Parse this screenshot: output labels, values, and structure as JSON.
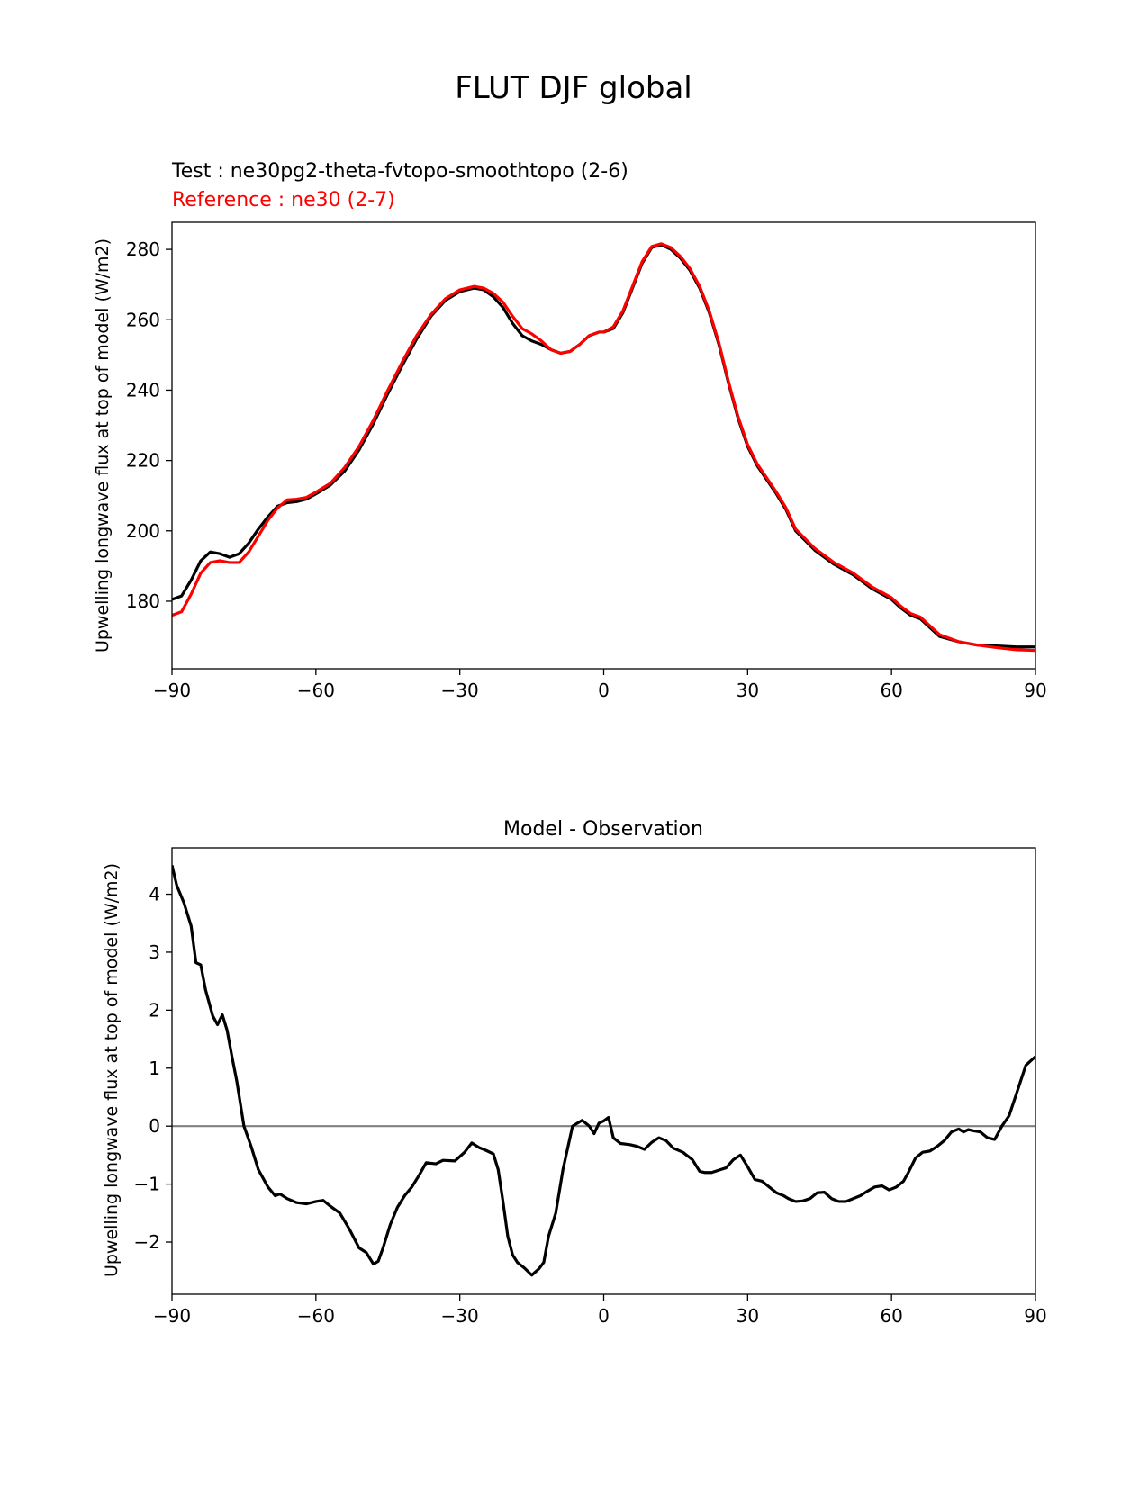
{
  "suptitle": "FLUT DJF global",
  "colors": {
    "test": "#000000",
    "reference": "#ff0000",
    "zero_line": "#808080"
  },
  "chart_data": [
    {
      "type": "line",
      "test_label": "Test : ne30pg2-theta-fvtopo-smoothtopo (2-6)",
      "reference_label": "Reference : ne30 (2-7)",
      "xlabel": "",
      "ylabel": "Upwelling longwave flux at top of model (W/m2)",
      "xlim": [
        -90,
        90
      ],
      "ylim": [
        160.8,
        287.7
      ],
      "xticks": [
        -90,
        -60,
        -30,
        0,
        30,
        60,
        90
      ],
      "xtick_labels": [
        "−90",
        "−60",
        "−30",
        "0",
        "30",
        "60",
        "90"
      ],
      "yticks": [
        180,
        200,
        220,
        240,
        260,
        280
      ],
      "ytick_labels": [
        "180",
        "200",
        "220",
        "240",
        "260",
        "280"
      ],
      "series": [
        {
          "name": "Test : ne30pg2-theta-fvtopo-smoothtopo (2-6)",
          "color": "#000000",
          "x": [
            -90,
            -88,
            -86,
            -84,
            -82,
            -80,
            -78,
            -76,
            -74,
            -72,
            -70,
            -68,
            -66,
            -64,
            -62,
            -60,
            -57,
            -54,
            -51,
            -48,
            -45,
            -42,
            -39,
            -36,
            -33,
            -30,
            -27,
            -25,
            -23,
            -21,
            -19,
            -17,
            -15,
            -13,
            -11,
            -9,
            -7,
            -5,
            -3,
            -1,
            0,
            2,
            4,
            6,
            8,
            10,
            12,
            14,
            16,
            18,
            20,
            22,
            24,
            26,
            28,
            30,
            32,
            34,
            36,
            38,
            40,
            44,
            48,
            52,
            56,
            60,
            62,
            64,
            66,
            68,
            70,
            74,
            78,
            82,
            86,
            90
          ],
          "values": [
            180.5,
            181.5,
            186.0,
            191.5,
            194.0,
            193.5,
            192.5,
            193.5,
            196.5,
            200.5,
            204.0,
            207.0,
            208.0,
            208.3,
            209.0,
            210.5,
            213.0,
            217.0,
            223.0,
            230.5,
            239.0,
            247.0,
            254.5,
            261.0,
            265.5,
            268.0,
            269.0,
            268.5,
            266.5,
            263.5,
            259.0,
            255.5,
            254.0,
            253.0,
            251.5,
            250.5,
            251.0,
            253.0,
            255.5,
            256.5,
            256.5,
            257.5,
            262.0,
            269.0,
            276.0,
            280.5,
            281.3,
            280.0,
            277.5,
            274.0,
            269.0,
            262.0,
            253.0,
            242.0,
            232.0,
            224.0,
            218.5,
            214.5,
            210.5,
            206.0,
            200.0,
            194.5,
            190.5,
            187.5,
            183.5,
            180.5,
            178.0,
            176.0,
            175.0,
            172.5,
            170.0,
            168.5,
            167.5,
            167.3,
            167.0,
            167.0
          ]
        },
        {
          "name": "Reference : ne30 (2-7)",
          "color": "#ff0000",
          "x": [
            -90,
            -88,
            -86,
            -84,
            -82,
            -80,
            -78,
            -76,
            -74,
            -72,
            -70,
            -68,
            -66,
            -64,
            -62,
            -60,
            -57,
            -54,
            -51,
            -48,
            -45,
            -42,
            -39,
            -36,
            -33,
            -30,
            -27,
            -25,
            -23,
            -21,
            -19,
            -17,
            -15,
            -13,
            -11,
            -9,
            -7,
            -5,
            -3,
            -1,
            0,
            2,
            4,
            6,
            8,
            10,
            12,
            14,
            16,
            18,
            20,
            22,
            24,
            26,
            28,
            30,
            32,
            34,
            36,
            38,
            40,
            44,
            48,
            52,
            56,
            60,
            62,
            64,
            66,
            68,
            70,
            74,
            78,
            82,
            86,
            90
          ],
          "values": [
            176.0,
            177.0,
            182.0,
            188.0,
            191.0,
            191.5,
            191.0,
            191.0,
            194.0,
            198.5,
            203.0,
            206.5,
            208.8,
            209.0,
            209.5,
            211.0,
            213.5,
            218.0,
            224.0,
            231.5,
            240.0,
            248.0,
            255.5,
            261.5,
            266.0,
            268.5,
            269.5,
            269.0,
            267.5,
            265.0,
            261.0,
            257.5,
            256.0,
            254.0,
            251.5,
            250.5,
            251.0,
            253.0,
            255.5,
            256.5,
            256.5,
            258.0,
            262.5,
            269.5,
            276.5,
            280.8,
            281.6,
            280.5,
            278.0,
            274.5,
            269.5,
            262.5,
            253.5,
            242.5,
            232.5,
            224.5,
            219.0,
            215.0,
            211.0,
            206.5,
            200.5,
            195.0,
            191.0,
            188.0,
            184.0,
            181.0,
            178.5,
            176.5,
            175.5,
            173.0,
            170.5,
            168.5,
            167.5,
            166.8,
            166.2,
            166.0
          ]
        }
      ]
    },
    {
      "type": "line",
      "title": "Model - Observation",
      "xlabel": "",
      "ylabel": "Upwelling longwave flux at top of model (W/m2)",
      "xlim": [
        -90,
        90
      ],
      "ylim": [
        -2.9,
        4.8
      ],
      "xticks": [
        -90,
        -60,
        -30,
        0,
        30,
        60,
        90
      ],
      "xtick_labels": [
        "−90",
        "−60",
        "−30",
        "0",
        "30",
        "60",
        "90"
      ],
      "yticks": [
        -2,
        -1,
        0,
        1,
        2,
        3,
        4
      ],
      "ytick_labels": [
        "−2",
        "−1",
        "0",
        "1",
        "2",
        "3",
        "4"
      ],
      "reference_line": 0,
      "series": [
        {
          "name": "Model - Observation",
          "color": "#000000",
          "x": [
            -90,
            -89,
            -87.5,
            -86,
            -85,
            -84,
            -83,
            -81.5,
            -80.5,
            -79.5,
            -78.5,
            -77.5,
            -76.5,
            -75,
            -73.5,
            -72,
            -70,
            -68.5,
            -67.5,
            -66,
            -64,
            -62,
            -60,
            -58.5,
            -57,
            -55,
            -53,
            -51,
            -49.5,
            -48,
            -47,
            -46,
            -44.5,
            -43,
            -41.5,
            -40,
            -38.5,
            -37,
            -35,
            -33.5,
            -31,
            -29,
            -27.5,
            -26,
            -24.5,
            -23,
            -22,
            -21,
            -20,
            -19,
            -18,
            -16.5,
            -15,
            -13.5,
            -12.5,
            -11.5,
            -10,
            -8.5,
            -6.5,
            -4.5,
            -3,
            -2,
            -1,
            0,
            1,
            2,
            3.5,
            5.5,
            7,
            8.5,
            10,
            11.5,
            13,
            14.5,
            16.5,
            18.5,
            20,
            21,
            22.5,
            24,
            25.5,
            27,
            28.5,
            30,
            31.5,
            33,
            34.5,
            36,
            37.5,
            38.5,
            40,
            41.5,
            43,
            44.5,
            46,
            47.5,
            49,
            50.5,
            52,
            53.5,
            55,
            56.5,
            58,
            59.5,
            61,
            62.5,
            63.5,
            65,
            66.5,
            68,
            69.5,
            71,
            72.5,
            74,
            75,
            76,
            77,
            78.5,
            80,
            81.5,
            83,
            84.5,
            86,
            88,
            90
          ],
          "values": [
            4.5,
            4.15,
            3.85,
            3.45,
            2.82,
            2.78,
            2.35,
            1.9,
            1.75,
            1.92,
            1.65,
            1.2,
            0.78,
            0.0,
            -0.35,
            -0.75,
            -1.05,
            -1.2,
            -1.17,
            -1.25,
            -1.32,
            -1.34,
            -1.3,
            -1.28,
            -1.38,
            -1.5,
            -1.78,
            -2.1,
            -2.18,
            -2.38,
            -2.33,
            -2.1,
            -1.7,
            -1.4,
            -1.2,
            -1.05,
            -0.85,
            -0.63,
            -0.65,
            -0.59,
            -0.6,
            -0.45,
            -0.29,
            -0.37,
            -0.42,
            -0.48,
            -0.75,
            -1.3,
            -1.9,
            -2.22,
            -2.35,
            -2.45,
            -2.57,
            -2.46,
            -2.35,
            -1.9,
            -1.5,
            -0.75,
            0.0,
            0.1,
            0.0,
            -0.13,
            0.05,
            0.09,
            0.15,
            -0.2,
            -0.3,
            -0.32,
            -0.35,
            -0.4,
            -0.28,
            -0.2,
            -0.25,
            -0.38,
            -0.45,
            -0.58,
            -0.78,
            -0.8,
            -0.8,
            -0.76,
            -0.72,
            -0.58,
            -0.5,
            -0.7,
            -0.92,
            -0.95,
            -1.05,
            -1.15,
            -1.2,
            -1.25,
            -1.3,
            -1.29,
            -1.25,
            -1.15,
            -1.14,
            -1.25,
            -1.3,
            -1.3,
            -1.25,
            -1.2,
            -1.12,
            -1.05,
            -1.03,
            -1.1,
            -1.05,
            -0.95,
            -0.8,
            -0.55,
            -0.45,
            -0.43,
            -0.35,
            -0.25,
            -0.1,
            -0.05,
            -0.1,
            -0.06,
            -0.08,
            -0.1,
            -0.2,
            -0.23,
            0.0,
            0.18,
            0.55,
            1.05,
            1.2
          ]
        }
      ]
    }
  ]
}
